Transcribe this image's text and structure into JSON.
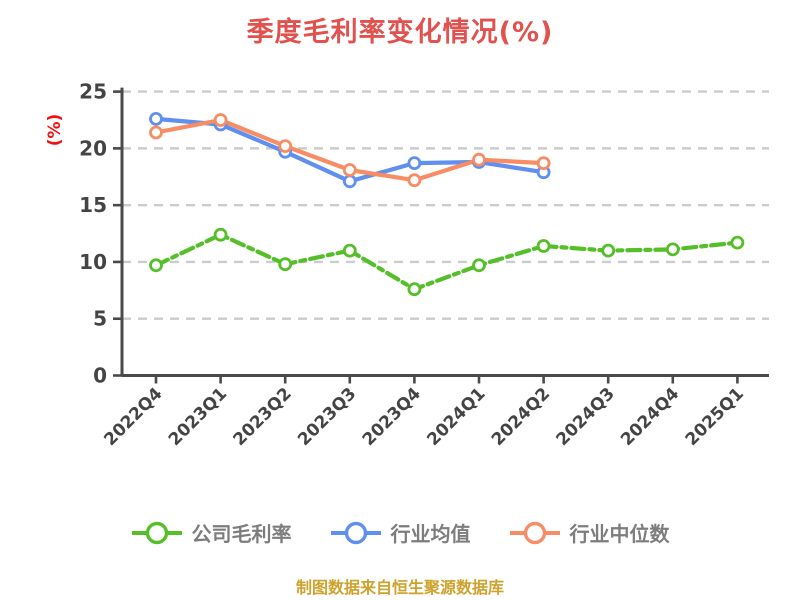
{
  "chart_data": {
    "type": "line",
    "title": "季度毛利率变化情况(%)",
    "title_color": "#e2514d",
    "ylabel": "(%)",
    "ylabel_color": "#f60d0d",
    "categories": [
      "2022Q4",
      "2023Q1",
      "2023Q2",
      "2023Q3",
      "2023Q4",
      "2024Q1",
      "2024Q2",
      "2024Q3",
      "2024Q4",
      "2025Q1"
    ],
    "yticks": [
      0,
      5,
      10,
      15,
      20,
      25
    ],
    "ylim": [
      0,
      25
    ],
    "grid": true,
    "grid_style": "dashed",
    "legend_position": "bottom",
    "axis_color": "#4a4a4a",
    "grid_color": "#cccccc",
    "tick_label_color": "#444444",
    "legend_text_color": "#7d7d7d",
    "marker_fill": "#ffffff",
    "series": [
      {
        "name": "公司毛利率",
        "color": "#55bf29",
        "line_style": "dashed",
        "marker": "circle",
        "values": [
          9.7,
          12.4,
          9.8,
          11.0,
          7.6,
          9.7,
          11.4,
          11.0,
          11.1,
          11.7
        ]
      },
      {
        "name": "行业均值",
        "color": "#5f8fef",
        "line_style": "solid",
        "marker": "circle",
        "values": [
          22.6,
          22.1,
          19.7,
          17.1,
          18.7,
          18.8,
          17.9,
          null,
          null,
          null
        ]
      },
      {
        "name": "行业中位数",
        "color": "#f88c64",
        "line_style": "solid",
        "marker": "circle",
        "values": [
          21.4,
          22.5,
          20.2,
          18.1,
          17.2,
          19.0,
          18.7,
          null,
          null,
          null
        ]
      }
    ]
  },
  "footer": {
    "text": "制图数据来自恒生聚源数据库",
    "color": "#cfa22e"
  }
}
